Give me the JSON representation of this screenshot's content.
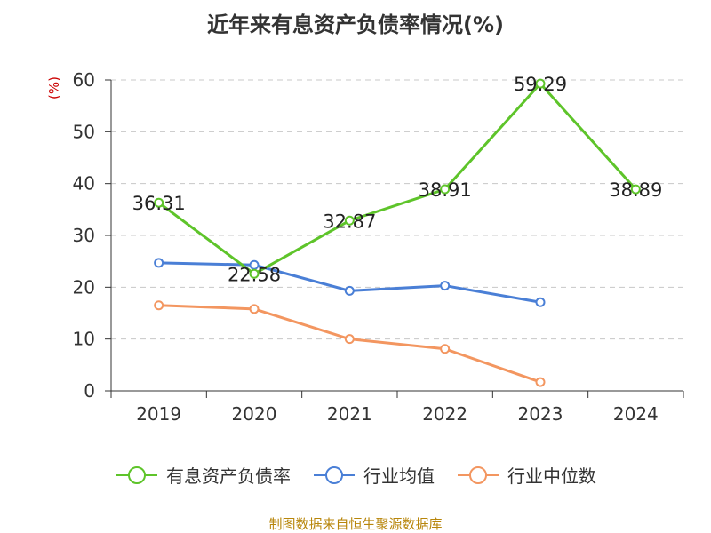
{
  "header": {
    "title": "近年来有息资产负债率情况(%)"
  },
  "unit_label": "(%)",
  "source": "制图数据来自恒生聚源数据库",
  "chart_data": {
    "type": "line",
    "title": "近年来有息资产负债率情况(%)",
    "ylabel": "(%)",
    "xlabel": "",
    "categories": [
      "2019",
      "2020",
      "2021",
      "2022",
      "2023",
      "2024"
    ],
    "ylim": [
      0,
      60
    ],
    "yticks": [
      0,
      10,
      20,
      30,
      40,
      50,
      60
    ],
    "grid": true,
    "legend_position": "bottom",
    "series": [
      {
        "name": "有息资产负债率",
        "color": "#5ec42a",
        "values": [
          36.31,
          22.58,
          32.87,
          38.91,
          59.29,
          38.89
        ],
        "labels": [
          "36.31",
          "22.58",
          "32.87",
          "38.91",
          "59.29",
          "38.89"
        ]
      },
      {
        "name": "行业均值",
        "color": "#4a7fd6",
        "values": [
          24.7,
          24.3,
          19.3,
          20.3,
          17.1,
          null
        ]
      },
      {
        "name": "行业中位数",
        "color": "#f39660",
        "values": [
          16.5,
          15.8,
          10.0,
          8.1,
          1.7,
          null
        ]
      }
    ]
  }
}
